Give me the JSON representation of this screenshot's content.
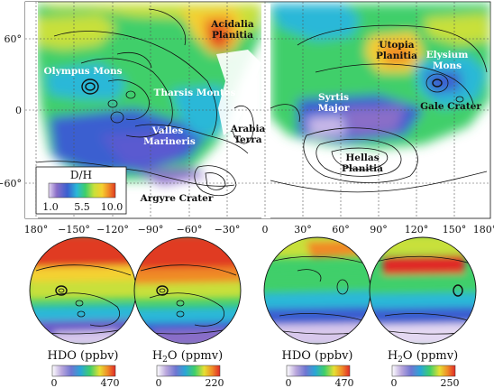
{
  "main_map": {
    "lat_ticks": [
      "60°",
      "0",
      "−60°"
    ],
    "lon_ticks": [
      "180°",
      "−150°",
      "−120°",
      "−90°",
      "−60°",
      "−30°",
      "0",
      "30°",
      "60°",
      "90°",
      "120°",
      "150°",
      "180°"
    ],
    "labels": {
      "acidalia": [
        "Acidalia",
        "Planitia"
      ],
      "olympus": "Olympus Mons",
      "tharsis": "Tharsis Montes",
      "valles": [
        "Valles",
        "Marineris"
      ],
      "arabia": [
        "Arabia",
        "Terra"
      ],
      "syrtis": [
        "Syrtis",
        "Major"
      ],
      "utopia": [
        "Utopia",
        "Planitia"
      ],
      "elysium": [
        "Elysium",
        "Mons"
      ],
      "gale": "Gale Crater",
      "hellas": [
        "Hellas",
        "Planitia"
      ],
      "argyre": "Argyre Crater"
    },
    "legend": {
      "title": "D/H",
      "ticks": [
        "1.0",
        "5.5",
        "10.0"
      ],
      "colors": [
        "#d8c8ec",
        "#8a6ec8",
        "#3a5fd0",
        "#29b8d8",
        "#3fcf6a",
        "#c8e03a",
        "#f5d030",
        "#f08a28",
        "#e03a20"
      ]
    }
  },
  "globes": [
    {
      "legend_title": "HDO (ppbv)",
      "ticks": [
        "0",
        "470"
      ]
    },
    {
      "legend_title": "H2O (ppmv)",
      "title_base": "H",
      "title_sub": "2",
      "title_rest": "O (ppmv)",
      "ticks": [
        "0",
        "220"
      ]
    },
    {
      "legend_title": "HDO (ppbv)",
      "ticks": [
        "0",
        "470"
      ]
    },
    {
      "legend_title": "H2O (ppmv)",
      "title_base": "H",
      "title_sub": "2",
      "title_rest": "O (ppmv)",
      "ticks": [
        "0",
        "250"
      ]
    }
  ]
}
